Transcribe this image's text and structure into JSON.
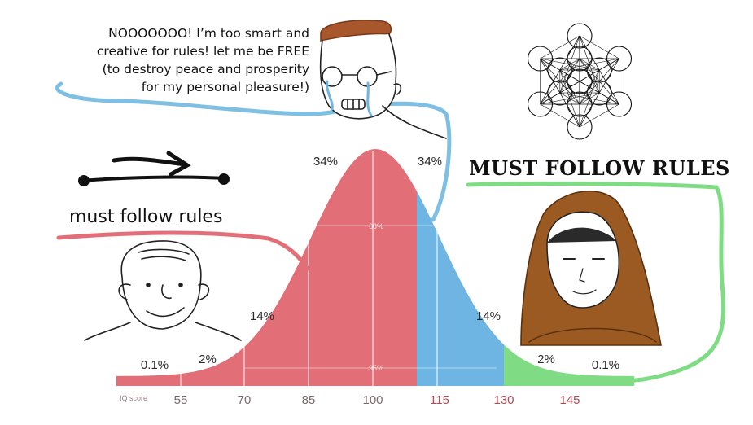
{
  "speech": {
    "lines": [
      "NOOOOOOO! I’m too smart and",
      "creative for rules! let me be FREE",
      "(to destroy peace and prosperity",
      "for my personal pleasure!)"
    ]
  },
  "labels": {
    "low": "must follow rules",
    "high": "MUST FOLLOW RULES"
  },
  "chart_data": {
    "type": "area",
    "xlabel": "IQ score",
    "x_ticks": [
      "55",
      "70",
      "85",
      "100",
      "115",
      "130",
      "145"
    ],
    "segments": [
      {
        "label": "0.1%",
        "from": 40,
        "to": 55
      },
      {
        "label": "2%",
        "from": 55,
        "to": 70
      },
      {
        "label": "14%",
        "from": 70,
        "to": 85
      },
      {
        "label": "34%",
        "from": 85,
        "to": 100
      },
      {
        "label": "34%",
        "from": 100,
        "to": 115
      },
      {
        "label": "14%",
        "from": 115,
        "to": 130
      },
      {
        "label": "2%",
        "from": 130,
        "to": 145
      },
      {
        "label": "0.1%",
        "from": 145,
        "to": 160
      }
    ],
    "inner_labels": [
      "68%",
      "95%"
    ],
    "colors": {
      "red": "#e26f78",
      "blue": "#6fb5e3",
      "green": "#7fdc84",
      "tick_red": "#b54a55",
      "tick_gray": "#7b6a6a"
    }
  },
  "figures": [
    {
      "name": "crying-wojak"
    },
    {
      "name": "smiling-brainlet"
    },
    {
      "name": "hooded-monk"
    },
    {
      "name": "metatrons-cube"
    }
  ]
}
